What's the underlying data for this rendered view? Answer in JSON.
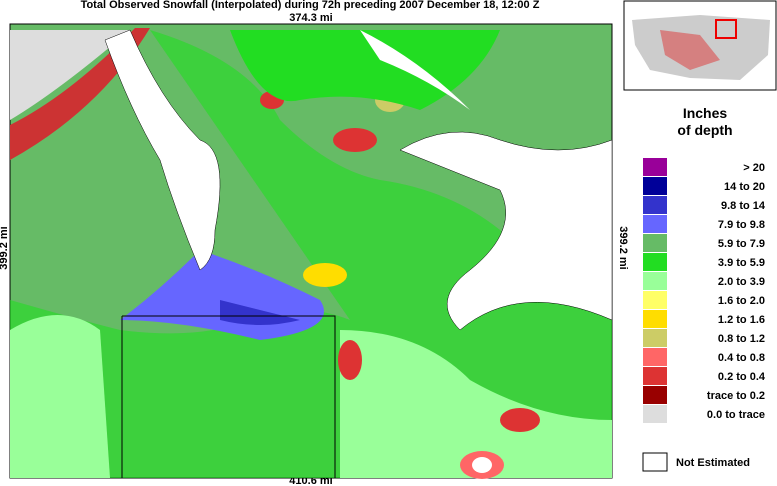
{
  "title": "Total Observed Snowfall (Interpolated) during 72h preceding 2007 December 18, 12:00 Z",
  "map": {
    "top_scale": "374.3 mi",
    "bottom_scale": "410.6 mi",
    "left_scale": "399.2 mi",
    "right_scale": "399.2 mi"
  },
  "legend": {
    "title_line1": "Inches",
    "title_line2": "of depth",
    "items": [
      {
        "label": "> 20",
        "color": "#990099"
      },
      {
        "label": "14 to 20",
        "color": "#000099"
      },
      {
        "label": "9.8 to 14",
        "color": "#3333cc"
      },
      {
        "label": "7.9 to 9.8",
        "color": "#6666ff"
      },
      {
        "label": "5.9 to 7.9",
        "color": "#66bb66"
      },
      {
        "label": "3.9 to 5.9",
        "color": "#22dd22"
      },
      {
        "label": "2.0 to 3.9",
        "color": "#99ff99"
      },
      {
        "label": "1.6 to 2.0",
        "color": "#ffff66"
      },
      {
        "label": "1.2 to 1.6",
        "color": "#ffdd00"
      },
      {
        "label": "0.8 to 1.2",
        "color": "#cccc66"
      },
      {
        "label": "0.4 to 0.8",
        "color": "#ff6666"
      },
      {
        "label": "0.2 to 0.4",
        "color": "#dd3333"
      },
      {
        "label": "trace to 0.2",
        "color": "#990000"
      },
      {
        "label": "0.0 to trace",
        "color": "#dddddd"
      }
    ],
    "not_estimated": "Not Estimated"
  }
}
